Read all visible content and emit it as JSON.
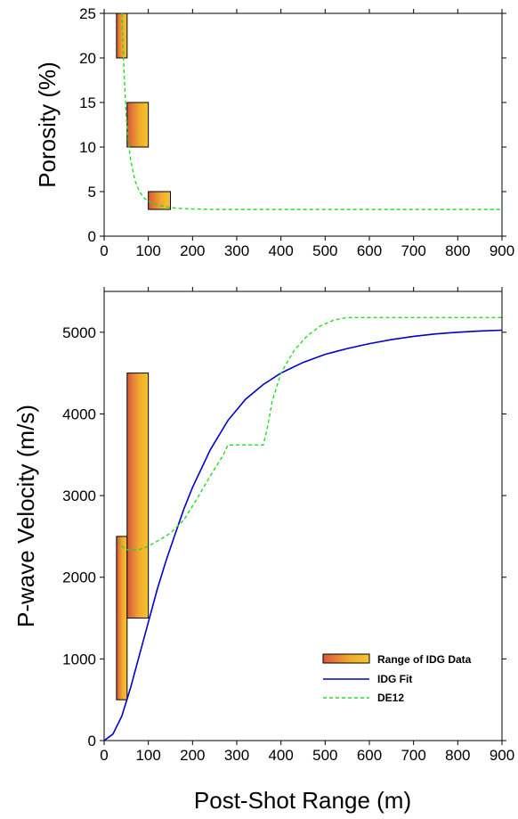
{
  "chart_data": [
    {
      "type": "line",
      "ylabel": "Porosity (%)",
      "xlim": [
        0,
        900
      ],
      "ylim": [
        0,
        25
      ],
      "x_ticks": [
        "0",
        "100",
        "200",
        "300",
        "400",
        "500",
        "600",
        "700",
        "800",
        "900"
      ],
      "y_ticks": [
        "0",
        "5",
        "10",
        "15",
        "20",
        "25"
      ],
      "x_tick_values": [
        0,
        100,
        200,
        300,
        400,
        500,
        600,
        700,
        800,
        900
      ],
      "y_tick_values": [
        0,
        5,
        10,
        15,
        20,
        25
      ],
      "boxes": [
        {
          "x0": 28,
          "x1": 52,
          "y0": 20,
          "y1": 25
        },
        {
          "x0": 52,
          "x1": 100,
          "y0": 10,
          "y1": 15
        },
        {
          "x0": 100,
          "x1": 150,
          "y0": 3,
          "y1": 5
        }
      ],
      "series": [
        {
          "label": "DE12",
          "color": "#22dd22",
          "style": "dashed",
          "x": [
            40,
            45,
            50,
            55,
            60,
            70,
            80,
            90,
            100,
            120,
            140,
            160,
            180,
            200,
            250,
            300,
            400,
            500,
            600,
            700,
            800,
            900
          ],
          "y": [
            25,
            18.5,
            13.5,
            10.5,
            8.5,
            6.2,
            5.0,
            4.3,
            3.9,
            3.5,
            3.3,
            3.15,
            3.1,
            3.05,
            3.0,
            3.0,
            3.0,
            3.0,
            3.0,
            3.0,
            3.0,
            3.0
          ]
        }
      ]
    },
    {
      "type": "line",
      "xlabel": "Post-Shot Range (m)",
      "ylabel": "P-wave Velocity (m/s)",
      "xlim": [
        0,
        900
      ],
      "ylim": [
        0,
        5500
      ],
      "x_ticks": [
        "0",
        "100",
        "200",
        "300",
        "400",
        "500",
        "600",
        "700",
        "800",
        "900"
      ],
      "y_ticks": [
        "0",
        "1000",
        "2000",
        "3000",
        "4000",
        "5000"
      ],
      "x_tick_values": [
        0,
        100,
        200,
        300,
        400,
        500,
        600,
        700,
        800,
        900
      ],
      "y_tick_values": [
        0,
        1000,
        2000,
        3000,
        4000,
        5000
      ],
      "boxes": [
        {
          "x0": 28,
          "x1": 52,
          "y0": 500,
          "y1": 2500
        },
        {
          "x0": 52,
          "x1": 100,
          "y0": 1500,
          "y1": 4500
        }
      ],
      "series": [
        {
          "label": "IDG Fit",
          "color": "#0000cc",
          "style": "solid",
          "x": [
            0,
            20,
            40,
            60,
            80,
            100,
            120,
            140,
            160,
            180,
            200,
            240,
            280,
            320,
            360,
            400,
            450,
            500,
            550,
            600,
            650,
            700,
            750,
            800,
            850,
            900
          ],
          "y": [
            0,
            80,
            300,
            650,
            1050,
            1450,
            1850,
            2200,
            2520,
            2830,
            3100,
            3560,
            3920,
            4180,
            4360,
            4500,
            4630,
            4730,
            4800,
            4860,
            4910,
            4950,
            4980,
            5000,
            5015,
            5025
          ]
        },
        {
          "label": "DE12",
          "color": "#22dd22",
          "style": "dashed",
          "x": [
            32,
            40,
            50,
            60,
            80,
            100,
            120,
            150,
            180,
            210,
            240,
            270,
            280,
            300,
            330,
            360,
            370,
            380,
            400,
            430,
            460,
            490,
            520,
            550,
            600,
            700,
            800,
            900
          ],
          "y": [
            2450,
            2380,
            2340,
            2330,
            2340,
            2380,
            2440,
            2540,
            2700,
            2960,
            3240,
            3500,
            3620,
            3620,
            3620,
            3620,
            3850,
            4150,
            4500,
            4780,
            4960,
            5080,
            5150,
            5180,
            5180,
            5180,
            5180,
            5180
          ]
        }
      ],
      "legend": {
        "position": "lower-right",
        "entries": [
          "Range of IDG Data",
          "IDG Fit",
          "DE12"
        ]
      }
    }
  ],
  "colors": {
    "box_gradient_left": "#d9563a",
    "box_gradient_right": "#f7c62a",
    "idg_fit": "#0000cc",
    "de12": "#22dd22"
  }
}
